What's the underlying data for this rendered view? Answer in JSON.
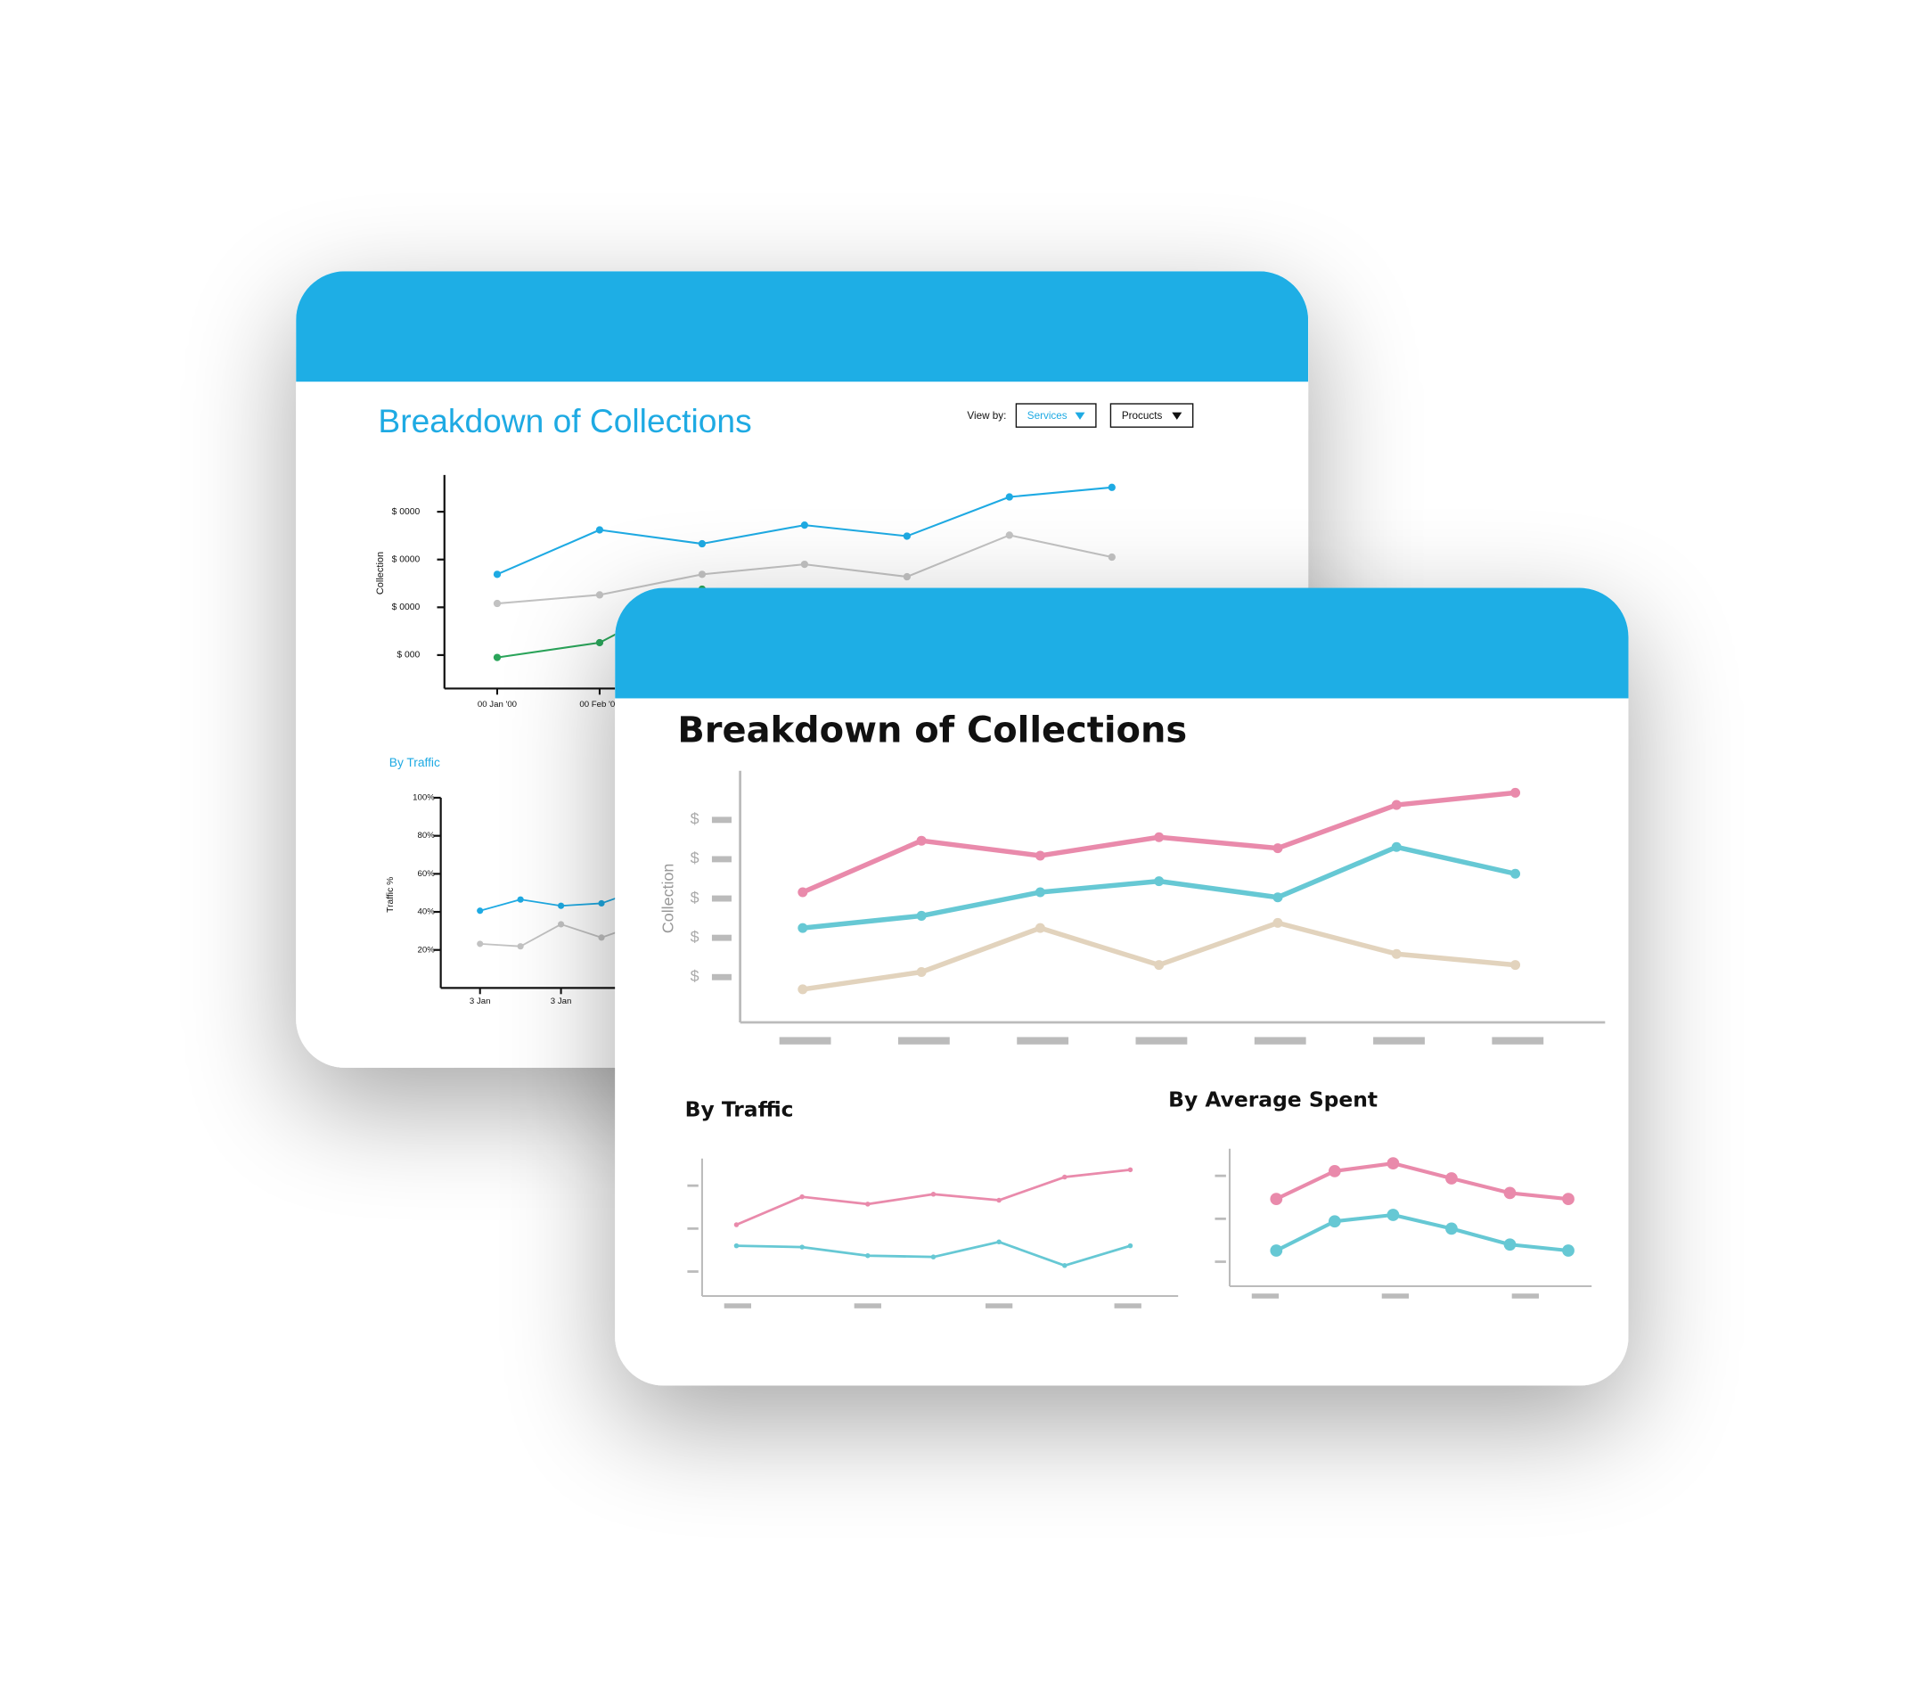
{
  "back_card": {
    "title": "Breakdown of Collections",
    "view_by_label": "View by:",
    "dropdowns": [
      "Services",
      "Procucts"
    ],
    "main_chart": {
      "type": "line",
      "y_label": "Collection",
      "categories": [
        "00 Jan '00",
        "00 Feb '00",
        null,
        null,
        null,
        null,
        null
      ],
      "ylim": [
        0.3,
        4.77
      ],
      "yticks": [
        {
          "value": 1,
          "label": "$ 000"
        },
        {
          "value": 2,
          "label": "$ 0000"
        },
        {
          "value": 3,
          "label": "$ 0000"
        },
        {
          "value": 4,
          "label": "$ 0000"
        }
      ],
      "series": [
        {
          "color": "#1eaae3",
          "values": [
            2.69,
            3.62,
            3.33,
            3.72,
            3.49,
            4.31,
            4.51
          ]
        },
        {
          "color": "#c2c2c2",
          "values": [
            2.08,
            2.26,
            2.69,
            2.9,
            2.64,
            3.51,
            3.05
          ]
        },
        {
          "color": "#2aa55a",
          "values": [
            0.95,
            1.26,
            2.38,
            null,
            null,
            null,
            null
          ]
        }
      ]
    },
    "traffic_chart": {
      "type": "line",
      "title": "By Traffic",
      "y_label": "Traffic %",
      "categories": [
        "3 Jan",
        null,
        "3 Jan",
        null,
        null
      ],
      "ylim": [
        0,
        100
      ],
      "yticks": [
        {
          "value": 20,
          "label": "20%"
        },
        {
          "value": 40,
          "label": "40%"
        },
        {
          "value": 60,
          "label": "60%"
        },
        {
          "value": 80,
          "label": "80%"
        },
        {
          "value": 100,
          "label": "100%"
        }
      ],
      "series": [
        {
          "color": "#1eaae3",
          "values": [
            40.6,
            46.5,
            43.2,
            44.5,
            52
          ]
        },
        {
          "color": "#c2c2c2",
          "values": [
            23.2,
            21.9,
            33.5,
            26.5,
            34
          ]
        }
      ]
    }
  },
  "front_card": {
    "title": "Breakdown of Collections",
    "main_chart": {
      "type": "line",
      "y_label": "Collection",
      "ylim": [
        -0.15,
        6.25
      ],
      "yticks": [
        {
          "value": 1,
          "label": "$"
        },
        {
          "value": 2,
          "label": "$"
        },
        {
          "value": 3,
          "label": "$"
        },
        {
          "value": 4,
          "label": "$"
        },
        {
          "value": 5,
          "label": "$"
        }
      ],
      "series": [
        {
          "color": "#e98aab",
          "values": [
            3.16,
            4.47,
            4.09,
            4.56,
            4.28,
            5.38,
            5.69
          ]
        },
        {
          "color": "#66c8d4",
          "values": [
            2.25,
            2.56,
            3.16,
            3.44,
            3.03,
            4.31,
            3.63
          ]
        },
        {
          "color": "#e2d3bd",
          "values": [
            0.69,
            1.13,
            2.25,
            1.31,
            2.38,
            1.59,
            1.31
          ]
        }
      ]
    },
    "traffic_chart": {
      "type": "line",
      "title": "By Traffic",
      "ylim": [
        0.43,
        3.63
      ],
      "yticks": [
        1,
        2,
        3
      ],
      "series": [
        {
          "color": "#e98aab",
          "values": [
            2.09,
            2.74,
            2.57,
            2.8,
            2.66,
            3.2,
            3.37
          ]
        },
        {
          "color": "#66c8d4",
          "values": [
            1.6,
            1.57,
            1.37,
            1.34,
            1.69,
            1.14,
            1.6
          ]
        }
      ]
    },
    "average_chart": {
      "type": "line",
      "title": "By Average Spent",
      "ylim": [
        0.43,
        3.63
      ],
      "yticks": [
        1,
        2,
        3
      ],
      "series": [
        {
          "color": "#e98aab",
          "values": [
            2.46,
            3.11,
            3.29,
            2.94,
            2.6,
            2.46
          ]
        },
        {
          "color": "#66c8d4",
          "values": [
            1.26,
            1.94,
            2.09,
            1.77,
            1.4,
            1.26
          ]
        }
      ]
    }
  }
}
